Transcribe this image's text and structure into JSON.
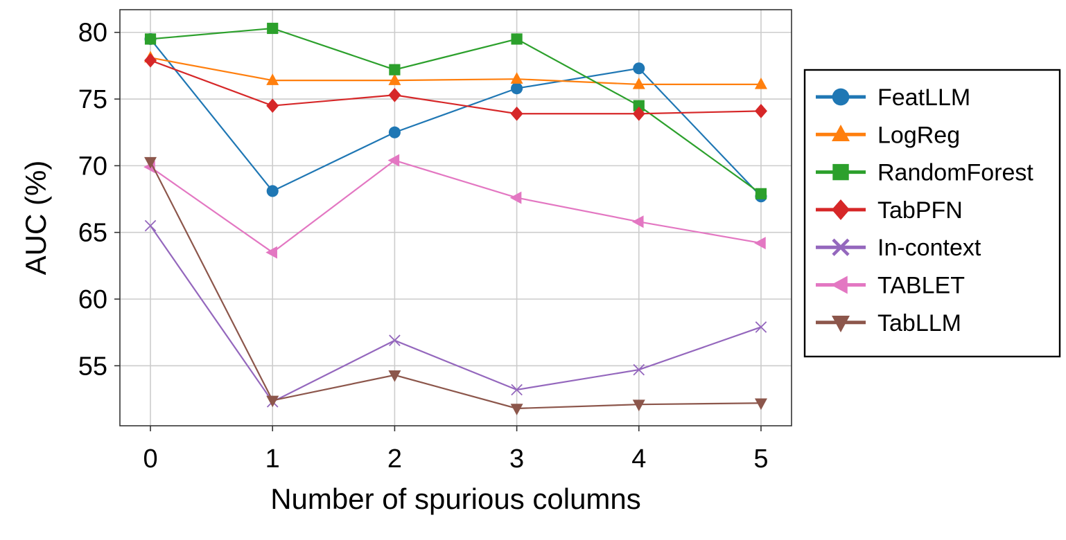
{
  "chart_data": {
    "type": "line",
    "title": "",
    "xlabel": "Number of spurious columns",
    "ylabel": "AUC (%)",
    "x": [
      0,
      1,
      2,
      3,
      4,
      5
    ],
    "xticks": [
      "0",
      "1",
      "2",
      "3",
      "4",
      "5"
    ],
    "yticks": [
      "55",
      "60",
      "65",
      "70",
      "75",
      "80"
    ],
    "ylim": [
      50.5,
      81.7
    ],
    "xlim": [
      -0.25,
      5.25
    ],
    "grid": true,
    "legend_position": "outside-right",
    "series": [
      {
        "name": "FeatLLM",
        "color": "#1f77b4",
        "marker": "circle",
        "values": [
          79.5,
          68.1,
          72.5,
          75.8,
          77.3,
          67.7
        ]
      },
      {
        "name": "LogReg",
        "color": "#ff7f0e",
        "marker": "triangle-up",
        "values": [
          78.1,
          76.4,
          76.4,
          76.5,
          76.1,
          76.1
        ]
      },
      {
        "name": "RandomForest",
        "color": "#2ca02c",
        "marker": "square",
        "values": [
          79.5,
          80.3,
          77.2,
          79.5,
          74.5,
          67.9
        ]
      },
      {
        "name": "TabPFN",
        "color": "#d62728",
        "marker": "diamond",
        "values": [
          77.9,
          74.5,
          75.3,
          73.9,
          73.9,
          74.1
        ]
      },
      {
        "name": "In-context",
        "color": "#9467bd",
        "marker": "x",
        "values": [
          65.5,
          52.3,
          56.9,
          53.2,
          54.7,
          57.9
        ]
      },
      {
        "name": "TABLET",
        "color": "#e377c2",
        "marker": "triangle-left",
        "values": [
          69.9,
          63.5,
          70.4,
          67.6,
          65.8,
          64.2
        ]
      },
      {
        "name": "TabLLM",
        "color": "#8c564b",
        "marker": "triangle-down",
        "values": [
          70.3,
          52.4,
          54.3,
          51.8,
          52.1,
          52.2
        ]
      }
    ]
  }
}
